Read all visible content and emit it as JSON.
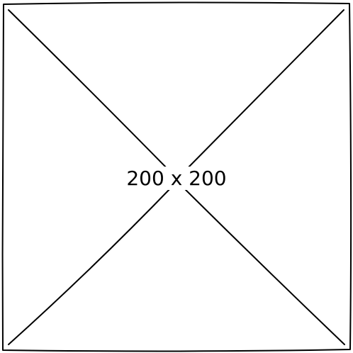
{
  "placeholder": {
    "label": "200 x 200",
    "stroke_color": "#000000",
    "background_color": "#ffffff"
  }
}
